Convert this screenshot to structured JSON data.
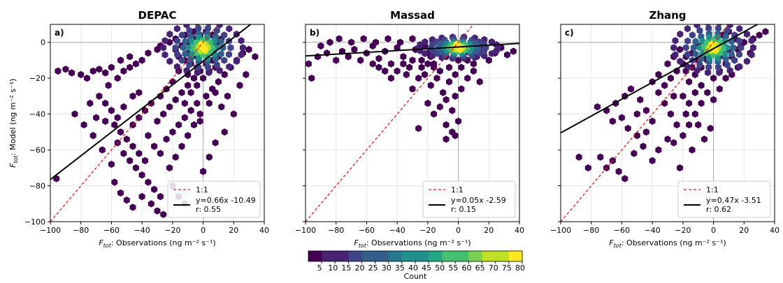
{
  "colors": {
    "viridis": [
      "#440154",
      "#482374",
      "#404387",
      "#345f8d",
      "#29788e",
      "#20908d",
      "#22a884",
      "#44bf70",
      "#7ad151",
      "#bddf26",
      "#fde725"
    ],
    "identity_line": "#e31a1c",
    "fit_line": "#000000",
    "reference_lines": "#aaaaaa"
  },
  "shared": {
    "xlabel": "F_tot: Observations (ng m⁻² s⁻¹)",
    "ylabel": "F_tot: Model (ng m⁻² s⁻¹)",
    "xlim": [
      -100,
      40
    ],
    "ylim": [
      -100,
      10
    ],
    "x_ticks": [
      -100,
      -80,
      -60,
      -40,
      -20,
      0,
      20,
      40
    ],
    "y_ticks": [
      0,
      -20,
      -40,
      -60,
      -80,
      -100
    ],
    "grid": true,
    "legend_placement": "lower-right",
    "legend_identity_label": "1:1"
  },
  "colorbar": {
    "label": "Count",
    "ticks": [
      "5",
      "10",
      "15",
      "20",
      "25",
      "30",
      "35",
      "40",
      "45",
      "50",
      "55",
      "60",
      "65",
      "70",
      "75",
      "80"
    ]
  },
  "chart_data": [
    {
      "type": "scatter",
      "subtype": "hexbin-density",
      "panel": "a)",
      "title": "DEPAC",
      "fit": {
        "slope": 0.66,
        "intercept": -10.49,
        "r": 0.55,
        "label": "y=0.66x -10.49",
        "r_label": "r: 0.55"
      },
      "density_center": [
        0,
        -3
      ],
      "points": [
        [
          -95,
          -16
        ],
        [
          -90,
          -15
        ],
        [
          -86,
          -17
        ],
        [
          -80,
          -18
        ],
        [
          -76,
          -20
        ],
        [
          -72,
          -16
        ],
        [
          -68,
          -15
        ],
        [
          -64,
          -17
        ],
        [
          -62,
          -24
        ],
        [
          -56,
          -20
        ],
        [
          -52,
          -16
        ],
        [
          -48,
          -14
        ],
        [
          -44,
          -12
        ],
        [
          -40,
          -10
        ],
        [
          -36,
          -6
        ],
        [
          -30,
          -4
        ],
        [
          -60,
          -14
        ],
        [
          -54,
          -10
        ],
        [
          -48,
          -8
        ],
        [
          -28,
          -2
        ],
        [
          -22,
          0
        ],
        [
          -18,
          2
        ],
        [
          -12,
          4
        ],
        [
          -6,
          6
        ],
        [
          -74,
          -34
        ],
        [
          -68,
          -30
        ],
        [
          -64,
          -34
        ],
        [
          -60,
          -38
        ],
        [
          -56,
          -42
        ],
        [
          -52,
          -36
        ],
        [
          -46,
          -30
        ],
        [
          -42,
          -28
        ],
        [
          -70,
          -42
        ],
        [
          -64,
          -44
        ],
        [
          -58,
          -46
        ],
        [
          -54,
          -50
        ],
        [
          -50,
          -54
        ],
        [
          -46,
          -58
        ],
        [
          -42,
          -62
        ],
        [
          -38,
          -66
        ],
        [
          -56,
          -56
        ],
        [
          -52,
          -62
        ],
        [
          -48,
          -66
        ],
        [
          -44,
          -70
        ],
        [
          -40,
          -74
        ],
        [
          -36,
          -78
        ],
        [
          -32,
          -82
        ],
        [
          -28,
          -86
        ],
        [
          -58,
          -78
        ],
        [
          -54,
          -84
        ],
        [
          -50,
          -88
        ],
        [
          -46,
          -92
        ],
        [
          -40,
          -86
        ],
        [
          -34,
          -90
        ],
        [
          -30,
          -94
        ],
        [
          -26,
          -96
        ],
        [
          -22,
          -70
        ],
        [
          -18,
          -64
        ],
        [
          -14,
          -58
        ],
        [
          -10,
          -52
        ],
        [
          -6,
          -46
        ],
        [
          -2,
          -40
        ],
        [
          4,
          -34
        ],
        [
          8,
          -28
        ],
        [
          -30,
          -44
        ],
        [
          -26,
          -40
        ],
        [
          -22,
          -36
        ],
        [
          -18,
          -32
        ],
        [
          -14,
          -28
        ],
        [
          -10,
          -24
        ],
        [
          -6,
          -20
        ],
        [
          -2,
          -16
        ],
        [
          -24,
          -54
        ],
        [
          -20,
          -50
        ],
        [
          -16,
          -46
        ],
        [
          -12,
          -42
        ],
        [
          -8,
          -38
        ],
        [
          -4,
          -34
        ],
        [
          2,
          -30
        ],
        [
          6,
          -26
        ],
        [
          10,
          -22
        ],
        [
          14,
          -18
        ],
        [
          18,
          -14
        ],
        [
          22,
          -10
        ],
        [
          26,
          -6
        ],
        [
          30,
          -4
        ],
        [
          34,
          -8
        ],
        [
          20,
          -40
        ],
        [
          12,
          -36
        ],
        [
          16,
          -30
        ],
        [
          24,
          -24
        ],
        [
          28,
          -18
        ],
        [
          14,
          -50
        ],
        [
          8,
          -56
        ],
        [
          4,
          -64
        ],
        [
          0,
          -72
        ],
        [
          -12,
          -10
        ],
        [
          -8,
          -12
        ],
        [
          -4,
          -8
        ],
        [
          0,
          -6
        ],
        [
          4,
          -4
        ],
        [
          8,
          -2
        ],
        [
          12,
          2
        ],
        [
          -10,
          -18
        ],
        [
          -4,
          -14
        ],
        [
          2,
          -12
        ],
        [
          6,
          -10
        ],
        [
          10,
          -8
        ],
        [
          -16,
          -16
        ],
        [
          -20,
          -22
        ],
        [
          -24,
          -26
        ],
        [
          -28,
          -30
        ],
        [
          -34,
          -34
        ],
        [
          -38,
          -38
        ],
        [
          -42,
          -42
        ],
        [
          -46,
          -46
        ],
        [
          -36,
          -52
        ],
        [
          -32,
          -58
        ],
        [
          -28,
          -62
        ],
        [
          -20,
          -80
        ],
        [
          -16,
          -86
        ],
        [
          -12,
          -90
        ],
        [
          -60,
          -68
        ],
        [
          -66,
          -60
        ],
        [
          -72,
          -52
        ],
        [
          -78,
          -46
        ],
        [
          -84,
          -40
        ],
        [
          -96,
          -76
        ],
        [
          -18,
          -4
        ],
        [
          -14,
          -2
        ],
        [
          -10,
          0
        ],
        [
          -6,
          2
        ],
        [
          -2,
          4
        ],
        [
          2,
          6
        ],
        [
          6,
          4
        ],
        [
          10,
          0
        ],
        [
          -16,
          -8
        ],
        [
          -10,
          -6
        ],
        [
          -4,
          -2
        ],
        [
          2,
          0
        ],
        [
          6,
          -4
        ],
        [
          -8,
          -28
        ],
        [
          -4,
          -24
        ],
        [
          0,
          -20
        ],
        [
          4,
          -16
        ],
        [
          8,
          -14
        ],
        [
          -12,
          -34
        ],
        [
          -2,
          -44
        ]
      ]
    },
    {
      "type": "scatter",
      "subtype": "hexbin-density",
      "panel": "b)",
      "title": "Massad",
      "fit": {
        "slope": 0.05,
        "intercept": -2.59,
        "r": 0.15,
        "label": "y=0.05x -2.59",
        "r_label": "r: 0.15"
      },
      "density_center": [
        0,
        -3
      ],
      "points": [
        [
          -98,
          -12
        ],
        [
          -92,
          -8
        ],
        [
          -86,
          -6
        ],
        [
          -80,
          -10
        ],
        [
          -76,
          -5
        ],
        [
          -72,
          -8
        ],
        [
          -68,
          -4
        ],
        [
          -64,
          -10
        ],
        [
          -60,
          -6
        ],
        [
          -56,
          -2
        ],
        [
          -52,
          -9
        ],
        [
          -48,
          -5
        ],
        [
          -44,
          -12
        ],
        [
          -40,
          -3
        ],
        [
          -36,
          -8
        ],
        [
          -32,
          -14
        ],
        [
          -28,
          -4
        ],
        [
          -24,
          -10
        ],
        [
          -20,
          -6
        ],
        [
          -16,
          -12
        ],
        [
          -12,
          -2
        ],
        [
          -8,
          -8
        ],
        [
          -4,
          -4
        ],
        [
          0,
          -10
        ],
        [
          4,
          -6
        ],
        [
          8,
          -2
        ],
        [
          12,
          -8
        ],
        [
          16,
          -4
        ],
        [
          20,
          -10
        ],
        [
          24,
          -6
        ],
        [
          28,
          -3
        ],
        [
          32,
          -7
        ],
        [
          36,
          -5
        ],
        [
          -90,
          -2
        ],
        [
          -84,
          0
        ],
        [
          -78,
          2
        ],
        [
          -70,
          0
        ],
        [
          -62,
          2
        ],
        [
          -54,
          0
        ],
        [
          -46,
          2
        ],
        [
          -38,
          0
        ],
        [
          -30,
          2
        ],
        [
          -22,
          -18
        ],
        [
          -18,
          -24
        ],
        [
          -14,
          -20
        ],
        [
          -10,
          -28
        ],
        [
          -6,
          -22
        ],
        [
          -2,
          -30
        ],
        [
          2,
          -26
        ],
        [
          6,
          -20
        ],
        [
          10,
          -16
        ],
        [
          14,
          -22
        ],
        [
          -26,
          -20
        ],
        [
          -30,
          -26
        ],
        [
          -34,
          -18
        ],
        [
          -20,
          -34
        ],
        [
          -16,
          -40
        ],
        [
          -12,
          -36
        ],
        [
          -8,
          -46
        ],
        [
          -4,
          -50
        ],
        [
          0,
          -44
        ],
        [
          -4,
          -38
        ],
        [
          -8,
          -32
        ],
        [
          -12,
          -16
        ],
        [
          -16,
          -14
        ],
        [
          -20,
          -12
        ],
        [
          -8,
          -54
        ],
        [
          -2,
          -52
        ],
        [
          -26,
          -48
        ],
        [
          -44,
          -20
        ],
        [
          -48,
          -16
        ],
        [
          -52,
          -14
        ],
        [
          -56,
          -12
        ],
        [
          -96,
          -20
        ],
        [
          -10,
          -4
        ],
        [
          -6,
          -2
        ],
        [
          -2,
          0
        ],
        [
          2,
          -2
        ],
        [
          6,
          -4
        ],
        [
          -14,
          -6
        ],
        [
          -18,
          -8
        ],
        [
          -22,
          -2
        ],
        [
          10,
          -12
        ],
        [
          -40,
          -16
        ],
        [
          -36,
          -12
        ],
        [
          -30,
          -10
        ],
        [
          -24,
          -14
        ],
        [
          -6,
          -14
        ],
        [
          -2,
          -18
        ],
        [
          2,
          -14
        ],
        [
          6,
          -10
        ]
      ]
    },
    {
      "type": "scatter",
      "subtype": "hexbin-density",
      "panel": "c)",
      "title": "Zhang",
      "fit": {
        "slope": 0.47,
        "intercept": -3.51,
        "r": 0.62,
        "label": "y=0.47x -3.51",
        "r_label": "r: 0.62"
      },
      "density_center": [
        0,
        -3
      ],
      "points": [
        [
          -88,
          -64
        ],
        [
          -82,
          -70
        ],
        [
          -74,
          -64
        ],
        [
          -70,
          -70
        ],
        [
          -66,
          -66
        ],
        [
          -62,
          -72
        ],
        [
          -58,
          -76
        ],
        [
          -52,
          -62
        ],
        [
          -46,
          -58
        ],
        [
          -40,
          -66
        ],
        [
          -36,
          -60
        ],
        [
          -30,
          -54
        ],
        [
          -50,
          -52
        ],
        [
          -56,
          -48
        ],
        [
          -60,
          -42
        ],
        [
          -66,
          -44
        ],
        [
          -70,
          -38
        ],
        [
          -76,
          -36
        ],
        [
          -64,
          -34
        ],
        [
          -58,
          -30
        ],
        [
          -54,
          -26
        ],
        [
          -48,
          -32
        ],
        [
          -44,
          -38
        ],
        [
          -40,
          -44
        ],
        [
          -36,
          -28
        ],
        [
          -32,
          -34
        ],
        [
          -28,
          -40
        ],
        [
          -24,
          -46
        ],
        [
          -20,
          -52
        ],
        [
          -16,
          -46
        ],
        [
          -12,
          -40
        ],
        [
          -8,
          -34
        ],
        [
          -40,
          -22
        ],
        [
          -36,
          -18
        ],
        [
          -32,
          -24
        ],
        [
          -28,
          -20
        ],
        [
          -24,
          -16
        ],
        [
          -20,
          -12
        ],
        [
          -16,
          -22
        ],
        [
          -12,
          -18
        ],
        [
          -8,
          -14
        ],
        [
          -4,
          -10
        ],
        [
          0,
          -20
        ],
        [
          4,
          -16
        ],
        [
          8,
          -12
        ],
        [
          12,
          -8
        ],
        [
          16,
          -4
        ],
        [
          20,
          0
        ],
        [
          24,
          -6
        ],
        [
          -30,
          -12
        ],
        [
          -26,
          -8
        ],
        [
          -22,
          -4
        ],
        [
          -18,
          -8
        ],
        [
          -14,
          -6
        ],
        [
          -10,
          -2
        ],
        [
          -6,
          -4
        ],
        [
          -2,
          0
        ],
        [
          2,
          2
        ],
        [
          6,
          4
        ],
        [
          10,
          6
        ],
        [
          14,
          2
        ],
        [
          18,
          -2
        ],
        [
          26,
          2
        ],
        [
          30,
          4
        ],
        [
          34,
          6
        ],
        [
          -20,
          -30
        ],
        [
          -16,
          -34
        ],
        [
          -12,
          -28
        ],
        [
          -8,
          -24
        ],
        [
          -4,
          -28
        ],
        [
          0,
          -32
        ],
        [
          4,
          -26
        ],
        [
          8,
          -20
        ],
        [
          12,
          -18
        ],
        [
          16,
          -14
        ],
        [
          -26,
          -30
        ],
        [
          -10,
          -46
        ],
        [
          -6,
          -54
        ],
        [
          -2,
          -48
        ],
        [
          -14,
          -60
        ],
        [
          -22,
          -70
        ],
        [
          -44,
          -50
        ],
        [
          -50,
          -40
        ],
        [
          -26,
          -56
        ],
        [
          -18,
          -40
        ],
        [
          -10,
          -10
        ],
        [
          -6,
          -8
        ],
        [
          -2,
          -6
        ],
        [
          2,
          -4
        ],
        [
          6,
          -2
        ],
        [
          -14,
          -14
        ],
        [
          -18,
          -16
        ],
        [
          4,
          -8
        ],
        [
          10,
          -4
        ]
      ]
    }
  ]
}
